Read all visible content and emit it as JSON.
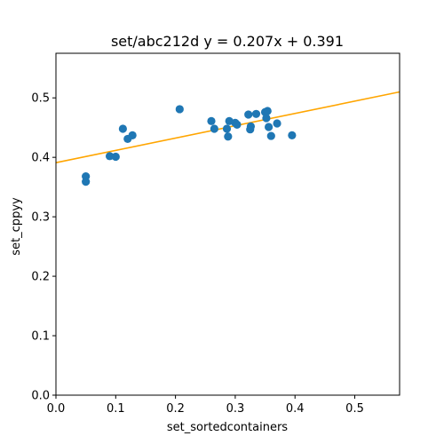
{
  "chart_data": {
    "type": "scatter",
    "title": "set/abc212d y = 0.207x + 0.391",
    "xlabel": "set_sortedcontainers",
    "ylabel": "set_cppyy",
    "xlim": [
      0.0,
      0.575
    ],
    "ylim": [
      0.0,
      0.575
    ],
    "xticks": [
      "0.0",
      "0.1",
      "0.2",
      "0.3",
      "0.4",
      "0.5"
    ],
    "yticks": [
      "0.0",
      "0.1",
      "0.2",
      "0.3",
      "0.4",
      "0.5"
    ],
    "grid": false,
    "points_color": "#1f77b4",
    "fit_color": "#ffa500",
    "fit": {
      "slope": 0.207,
      "intercept": 0.391
    },
    "points": [
      {
        "x": 0.05,
        "y": 0.368
      },
      {
        "x": 0.05,
        "y": 0.359
      },
      {
        "x": 0.09,
        "y": 0.402
      },
      {
        "x": 0.1,
        "y": 0.401
      },
      {
        "x": 0.112,
        "y": 0.448
      },
      {
        "x": 0.12,
        "y": 0.431
      },
      {
        "x": 0.128,
        "y": 0.437
      },
      {
        "x": 0.207,
        "y": 0.481
      },
      {
        "x": 0.26,
        "y": 0.461
      },
      {
        "x": 0.265,
        "y": 0.448
      },
      {
        "x": 0.286,
        "y": 0.448
      },
      {
        "x": 0.288,
        "y": 0.435
      },
      {
        "x": 0.29,
        "y": 0.461
      },
      {
        "x": 0.3,
        "y": 0.458
      },
      {
        "x": 0.303,
        "y": 0.455
      },
      {
        "x": 0.322,
        "y": 0.472
      },
      {
        "x": 0.325,
        "y": 0.447
      },
      {
        "x": 0.326,
        "y": 0.452
      },
      {
        "x": 0.335,
        "y": 0.473
      },
      {
        "x": 0.35,
        "y": 0.476
      },
      {
        "x": 0.352,
        "y": 0.466
      },
      {
        "x": 0.354,
        "y": 0.478
      },
      {
        "x": 0.356,
        "y": 0.451
      },
      {
        "x": 0.36,
        "y": 0.436
      },
      {
        "x": 0.37,
        "y": 0.457
      },
      {
        "x": 0.395,
        "y": 0.437
      }
    ]
  }
}
